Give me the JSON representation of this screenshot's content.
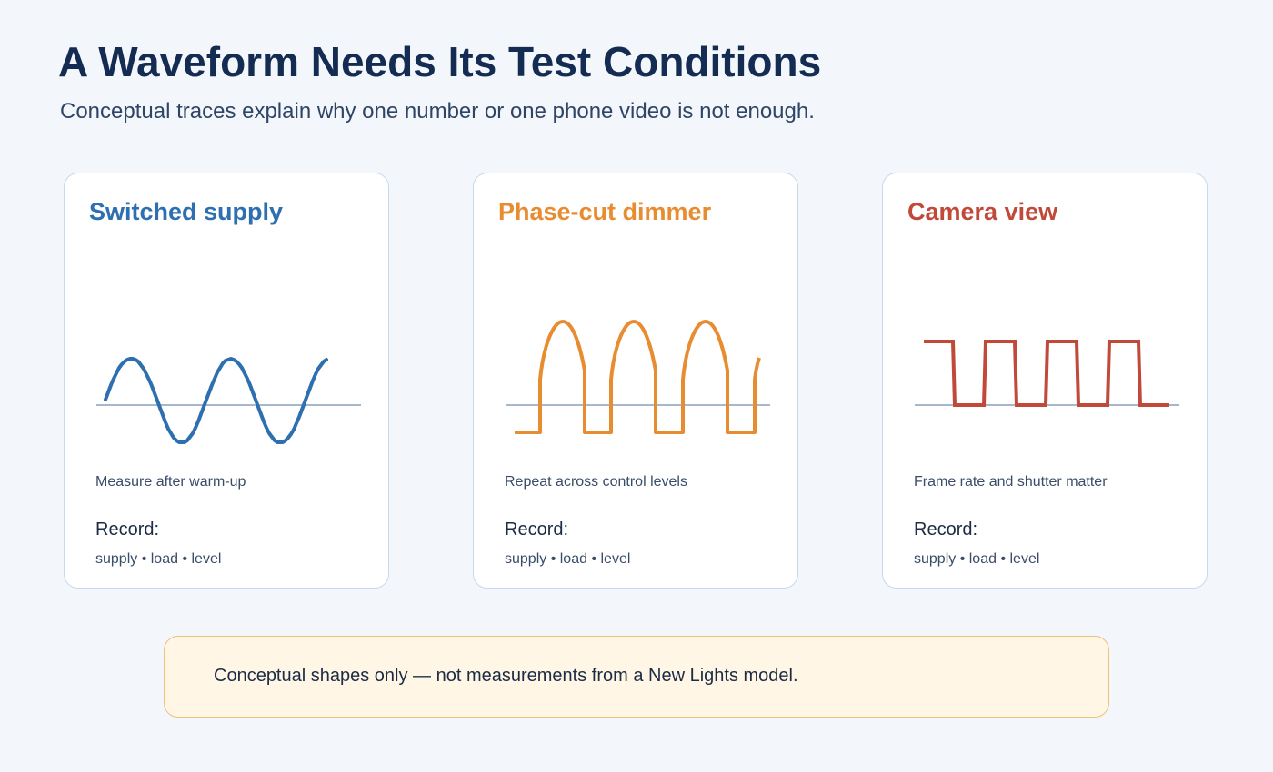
{
  "header": {
    "title": "A Waveform Needs Its Test Conditions",
    "subtitle": "Conceptual traces explain why one number or one phone video is not enough."
  },
  "cards": [
    {
      "title": "Switched supply",
      "color": "#2e6fb0",
      "trace": "sine",
      "note": "Measure after warm-up",
      "record_label": "Record:",
      "record_items": "supply • load • level"
    },
    {
      "title": "Phase-cut dimmer",
      "color": "#e88c31",
      "trace": "phase-cut",
      "note": "Repeat across control levels",
      "record_label": "Record:",
      "record_items": "supply • load • level"
    },
    {
      "title": "Camera view",
      "color": "#c0493a",
      "trace": "square",
      "note": "Frame rate and shutter matter",
      "record_label": "Record:",
      "record_items": "supply • load • level"
    }
  ],
  "baseline_color": "#a7b8ca",
  "footnote": {
    "text": "Conceptual shapes only — not measurements from a New Lights model."
  }
}
